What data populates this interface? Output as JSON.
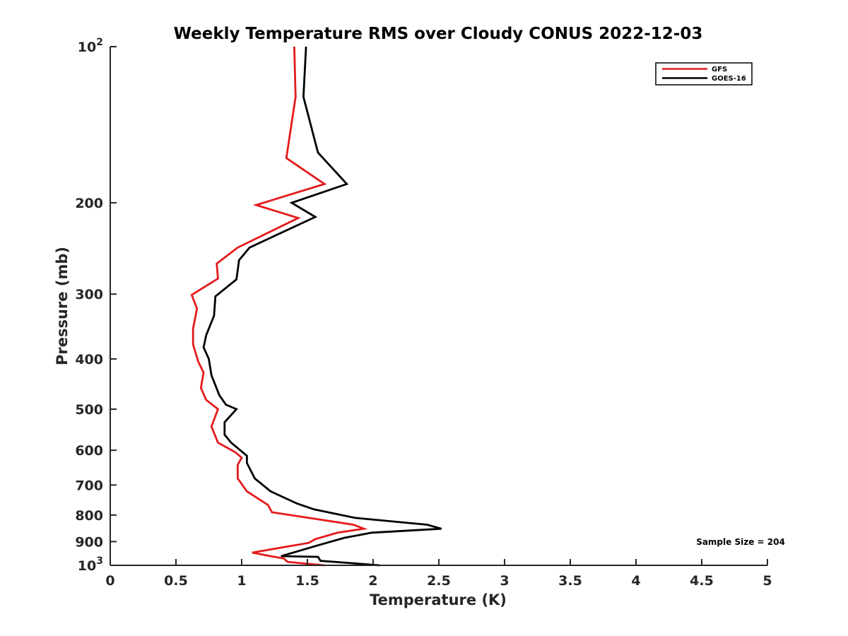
{
  "chart_data": {
    "type": "line",
    "title": "Weekly Temperature RMS over Cloudy CONUS 2022-12-03",
    "xlabel": "Temperature (K)",
    "ylabel": "Pressure (mb)",
    "xlim": [
      0,
      5
    ],
    "ylim": [
      100,
      1000
    ],
    "y_scale": "log",
    "y_reversed": true,
    "grid": false,
    "legend_position": "top-right",
    "x_ticks": [
      "0",
      "0.5",
      "1",
      "1.5",
      "2",
      "2.5",
      "3",
      "3.5",
      "4",
      "4.5",
      "5"
    ],
    "x_tick_values": [
      0,
      0.5,
      1,
      1.5,
      2,
      2.5,
      3,
      3.5,
      4,
      4.5,
      5
    ],
    "y_ticks": [
      {
        "value": 100,
        "base": "10",
        "exp": "2"
      },
      {
        "value": 200,
        "text": "200"
      },
      {
        "value": 300,
        "text": "300"
      },
      {
        "value": 400,
        "text": "400"
      },
      {
        "value": 500,
        "text": "500"
      },
      {
        "value": 600,
        "text": "600"
      },
      {
        "value": 700,
        "text": "700"
      },
      {
        "value": 800,
        "text": "800"
      },
      {
        "value": 900,
        "text": "900"
      },
      {
        "value": 1000,
        "base": "10",
        "exp": "3"
      }
    ],
    "annotation": "Sample Size = 204",
    "series": [
      {
        "name": "GFS",
        "color": "#e41a1c",
        "points": [
          [
            1.4,
            100
          ],
          [
            1.41,
            125
          ],
          [
            1.34,
            164
          ],
          [
            1.63,
            184
          ],
          [
            1.11,
            202
          ],
          [
            1.43,
            214
          ],
          [
            0.97,
            244
          ],
          [
            0.81,
            262
          ],
          [
            0.82,
            280
          ],
          [
            0.62,
            301
          ],
          [
            0.66,
            320
          ],
          [
            0.63,
            350
          ],
          [
            0.63,
            375
          ],
          [
            0.67,
            405
          ],
          [
            0.71,
            425
          ],
          [
            0.69,
            455
          ],
          [
            0.73,
            480
          ],
          [
            0.82,
            500
          ],
          [
            0.77,
            540
          ],
          [
            0.82,
            580
          ],
          [
            0.95,
            605
          ],
          [
            1.0,
            620
          ],
          [
            0.97,
            640
          ],
          [
            0.97,
            680
          ],
          [
            1.04,
            720
          ],
          [
            1.2,
            765
          ],
          [
            1.23,
            790
          ],
          [
            1.85,
            835
          ],
          [
            1.93,
            850
          ],
          [
            1.73,
            865
          ],
          [
            1.56,
            890
          ],
          [
            1.51,
            905
          ],
          [
            1.08,
            945
          ],
          [
            1.22,
            960
          ],
          [
            1.32,
            970
          ],
          [
            1.35,
            985
          ],
          [
            1.63,
            1000
          ]
        ]
      },
      {
        "name": "GOES-16",
        "color": "#000000",
        "points": [
          [
            1.49,
            100
          ],
          [
            1.47,
            125
          ],
          [
            1.58,
            160
          ],
          [
            1.8,
            184
          ],
          [
            1.38,
            200
          ],
          [
            1.56,
            213
          ],
          [
            1.06,
            244
          ],
          [
            0.98,
            258
          ],
          [
            0.96,
            281
          ],
          [
            0.8,
            303
          ],
          [
            0.79,
            330
          ],
          [
            0.73,
            360
          ],
          [
            0.71,
            380
          ],
          [
            0.75,
            400
          ],
          [
            0.77,
            430
          ],
          [
            0.83,
            470
          ],
          [
            0.88,
            490
          ],
          [
            0.96,
            500
          ],
          [
            0.87,
            530
          ],
          [
            0.87,
            560
          ],
          [
            0.92,
            580
          ],
          [
            1.04,
            615
          ],
          [
            1.04,
            635
          ],
          [
            1.1,
            680
          ],
          [
            1.22,
            720
          ],
          [
            1.42,
            760
          ],
          [
            1.55,
            780
          ],
          [
            1.86,
            810
          ],
          [
            2.41,
            835
          ],
          [
            2.52,
            850
          ],
          [
            1.99,
            865
          ],
          [
            1.78,
            885
          ],
          [
            1.58,
            915
          ],
          [
            1.3,
            960
          ],
          [
            1.58,
            963
          ],
          [
            1.6,
            980
          ],
          [
            2.05,
            1000
          ]
        ]
      }
    ]
  }
}
